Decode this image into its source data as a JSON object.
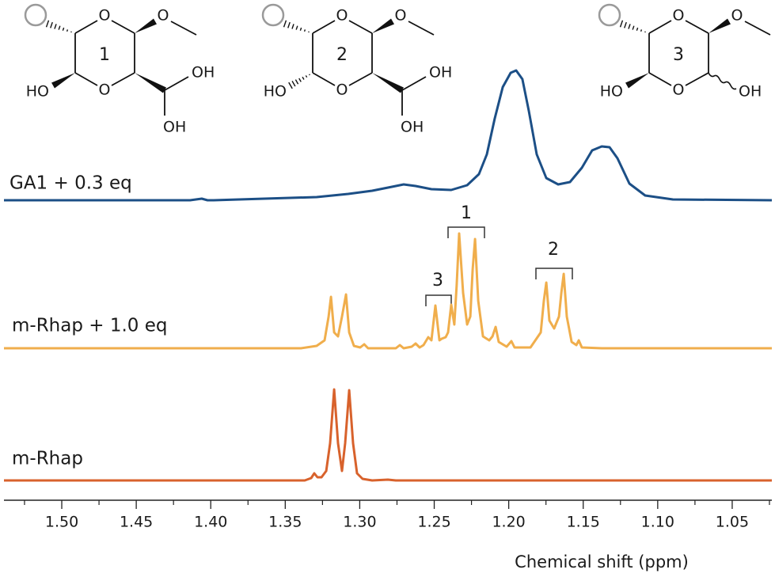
{
  "chart_data": {
    "type": "line",
    "x_label": "Chemical shift (ppm)",
    "xlim": [
      1.5388,
      1.0234
    ],
    "ylim": [
      0,
      632
    ],
    "xticks": [
      {
        "value": 1.5,
        "label": "1.50"
      },
      1.45,
      {
        "value": 1.4,
        "label": "1.40"
      },
      1.35,
      {
        "value": 1.3,
        "label": "1.30"
      },
      1.25,
      {
        "value": 1.2,
        "label": "1.20"
      },
      1.15,
      {
        "value": 1.1,
        "label": "1.10"
      },
      1.05
    ],
    "xminorticks": [
      1.525,
      1.475,
      1.425,
      1.375,
      1.325,
      1.275,
      1.225,
      1.175,
      1.125,
      1.075,
      1.025
    ],
    "annotations": [
      "1",
      "2",
      "3"
    ],
    "series": [
      {
        "name": "GA1 + 0.3 eq",
        "color": "#1c4f86",
        "x": [
          1.5388,
          1.4139,
          1.406,
          1.4022,
          1.398,
          1.3289,
          1.3077,
          1.2917,
          1.2784,
          1.2705,
          1.2625,
          1.2519,
          1.2386,
          1.2279,
          1.22,
          1.2147,
          1.2094,
          1.204,
          1.1987,
          1.195,
          1.1908,
          1.1865,
          1.1812,
          1.1748,
          1.1668,
          1.1589,
          1.1509,
          1.144,
          1.1376,
          1.1323,
          1.127,
          1.119,
          1.1084,
          1.0898,
          1.0234
        ],
        "values": [
          379,
          379,
          381,
          379,
          379,
          383,
          387,
          391,
          396,
          399,
          397,
          393,
          392,
          398,
          412,
          437,
          482,
          522,
          540,
          543,
          532,
          492,
          437,
          407,
          399,
          402,
          420,
          442,
          447,
          446,
          432,
          400,
          385,
          380,
          379
        ]
      },
      {
        "name": "m-Rhap + 1.0 eq",
        "color": "#f0ae4c",
        "x": [
          1.5388,
          1.3395,
          1.3289,
          1.3236,
          1.3209,
          1.3193,
          1.3172,
          1.3146,
          1.3119,
          1.3092,
          1.3071,
          1.3039,
          1.2997,
          1.297,
          1.2944,
          1.2758,
          1.2731,
          1.2705,
          1.2651,
          1.2625,
          1.2598,
          1.2572,
          1.254,
          1.2519,
          1.2492,
          1.2465,
          1.245,
          1.2423,
          1.2407,
          1.2386,
          1.2365,
          1.2349,
          1.2333,
          1.2306,
          1.2279,
          1.2258,
          1.2242,
          1.2226,
          1.2205,
          1.2173,
          1.2131,
          1.2109,
          1.2088,
          1.2067,
          1.2014,
          1.1982,
          1.1961,
          1.1854,
          1.1785,
          1.1764,
          1.1748,
          1.1727,
          1.1695,
          1.1663,
          1.1647,
          1.1631,
          1.161,
          1.1578,
          1.1546,
          1.153,
          1.1509,
          1.1376,
          1.0234
        ],
        "values": [
          192,
          192,
          195,
          202,
          232,
          257,
          212,
          207,
          232,
          260,
          212,
          195,
          193,
          197,
          192,
          192,
          196,
          192,
          194,
          198,
          193,
          196,
          206,
          202,
          246,
          202,
          204,
          206,
          212,
          247,
          222,
          272,
          337,
          262,
          222,
          232,
          292,
          330,
          252,
          207,
          202,
          207,
          219,
          200,
          194,
          201,
          193,
          193,
          212,
          252,
          275,
          227,
          217,
          232,
          262,
          286,
          232,
          200,
          196,
          202,
          193,
          192,
          192
        ]
      },
      {
        "name": "m-Rhap",
        "color": "#d8622c",
        "x": [
          1.5388,
          1.3369,
          1.3326,
          1.3305,
          1.3284,
          1.3257,
          1.3225,
          1.3199,
          1.3172,
          1.3146,
          1.3119,
          1.3098,
          1.3071,
          1.3045,
          1.3018,
          1.2981,
          1.2917,
          1.2811,
          1.2758,
          1.0234
        ],
        "values": [
          25,
          25,
          28,
          34,
          29,
          29,
          37,
          72,
          140,
          72,
          37,
          72,
          139,
          72,
          34,
          27,
          25,
          26,
          25,
          25
        ]
      }
    ]
  },
  "structures": [
    {
      "number": "1",
      "labels": [
        "O",
        "O",
        "O",
        "HO",
        "OH",
        "OH"
      ]
    },
    {
      "number": "2",
      "labels": [
        "O",
        "O",
        "O",
        "HO",
        "OH",
        "OH"
      ]
    },
    {
      "number": "3",
      "labels": [
        "O",
        "O",
        "O",
        "HO",
        "OH"
      ]
    }
  ]
}
